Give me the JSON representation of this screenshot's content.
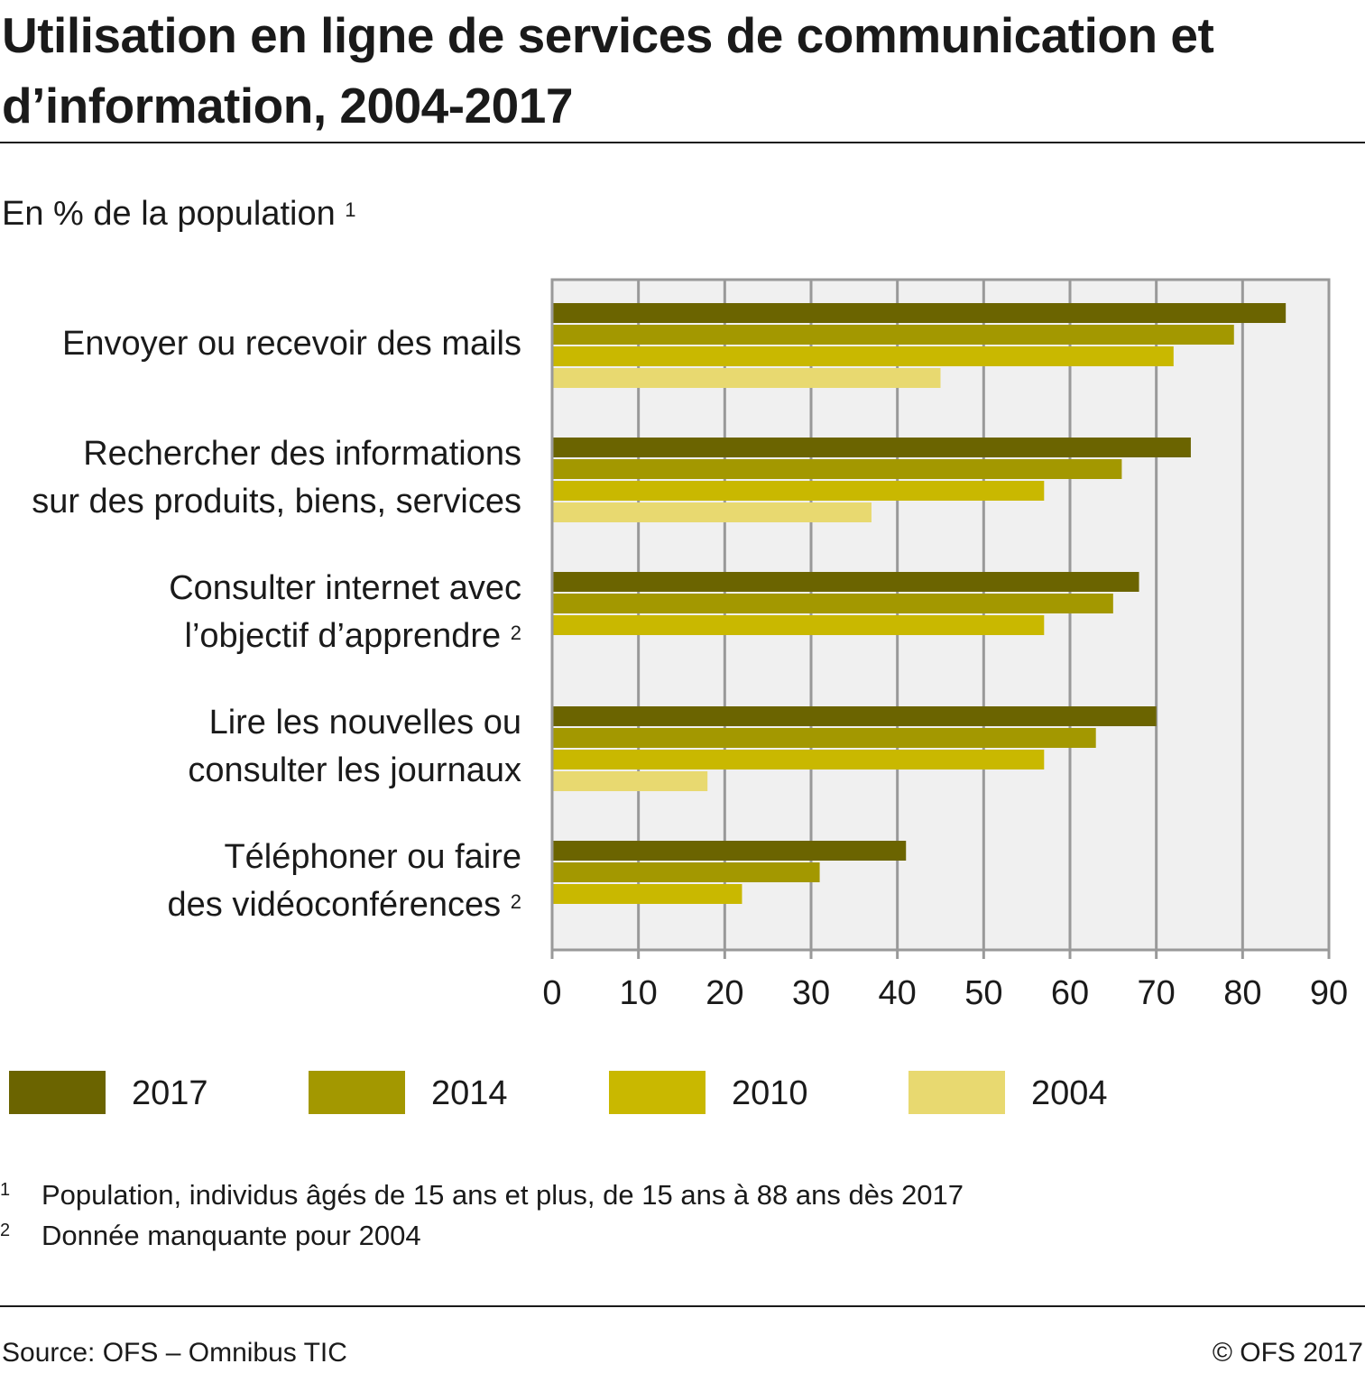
{
  "title": "Utilisation en ligne de services de communication et d’information, 2004-2017",
  "subtitle": "En % de la population",
  "subtitle_note": "1",
  "chart_data": {
    "type": "bar",
    "orientation": "horizontal",
    "categories": [
      {
        "lines": [
          "Envoyer ou recevoir des mails"
        ],
        "note": ""
      },
      {
        "lines": [
          "Rechercher des informations",
          "sur des produits, biens, services"
        ],
        "note": ""
      },
      {
        "lines": [
          "Consulter internet avec",
          "l’objectif d’apprendre"
        ],
        "note": "2"
      },
      {
        "lines": [
          "Lire les nouvelles ou",
          "consulter les journaux"
        ],
        "note": ""
      },
      {
        "lines": [
          "Téléphoner ou faire",
          "des vidéoconférences"
        ],
        "note": "2"
      }
    ],
    "series": [
      {
        "name": "2017",
        "color": "#6b6400",
        "values": [
          85,
          74,
          68,
          70,
          41
        ]
      },
      {
        "name": "2014",
        "color": "#a39800",
        "values": [
          79,
          66,
          65,
          63,
          31
        ]
      },
      {
        "name": "2010",
        "color": "#c9b800",
        "values": [
          72,
          57,
          57,
          57,
          22
        ]
      },
      {
        "name": "2004",
        "color": "#e8d970",
        "values": [
          45,
          37,
          null,
          18,
          null
        ]
      }
    ],
    "xlim": [
      0,
      90
    ],
    "xticks": [
      "0",
      "10",
      "20",
      "30",
      "40",
      "50",
      "60",
      "70",
      "80",
      "90"
    ],
    "grid": true,
    "plot_background": "#f0f0f0",
    "grid_color": "#999999",
    "legend_position": "bottom"
  },
  "footnotes": [
    {
      "num": "1",
      "text": "Population, individus âgés de 15 ans et plus, de 15 ans à 88 ans dès 2017"
    },
    {
      "num": "2",
      "text": "Donnée manquante pour 2004"
    }
  ],
  "source": "Source: OFS – Omnibus TIC",
  "copyright": "© OFS 2017"
}
